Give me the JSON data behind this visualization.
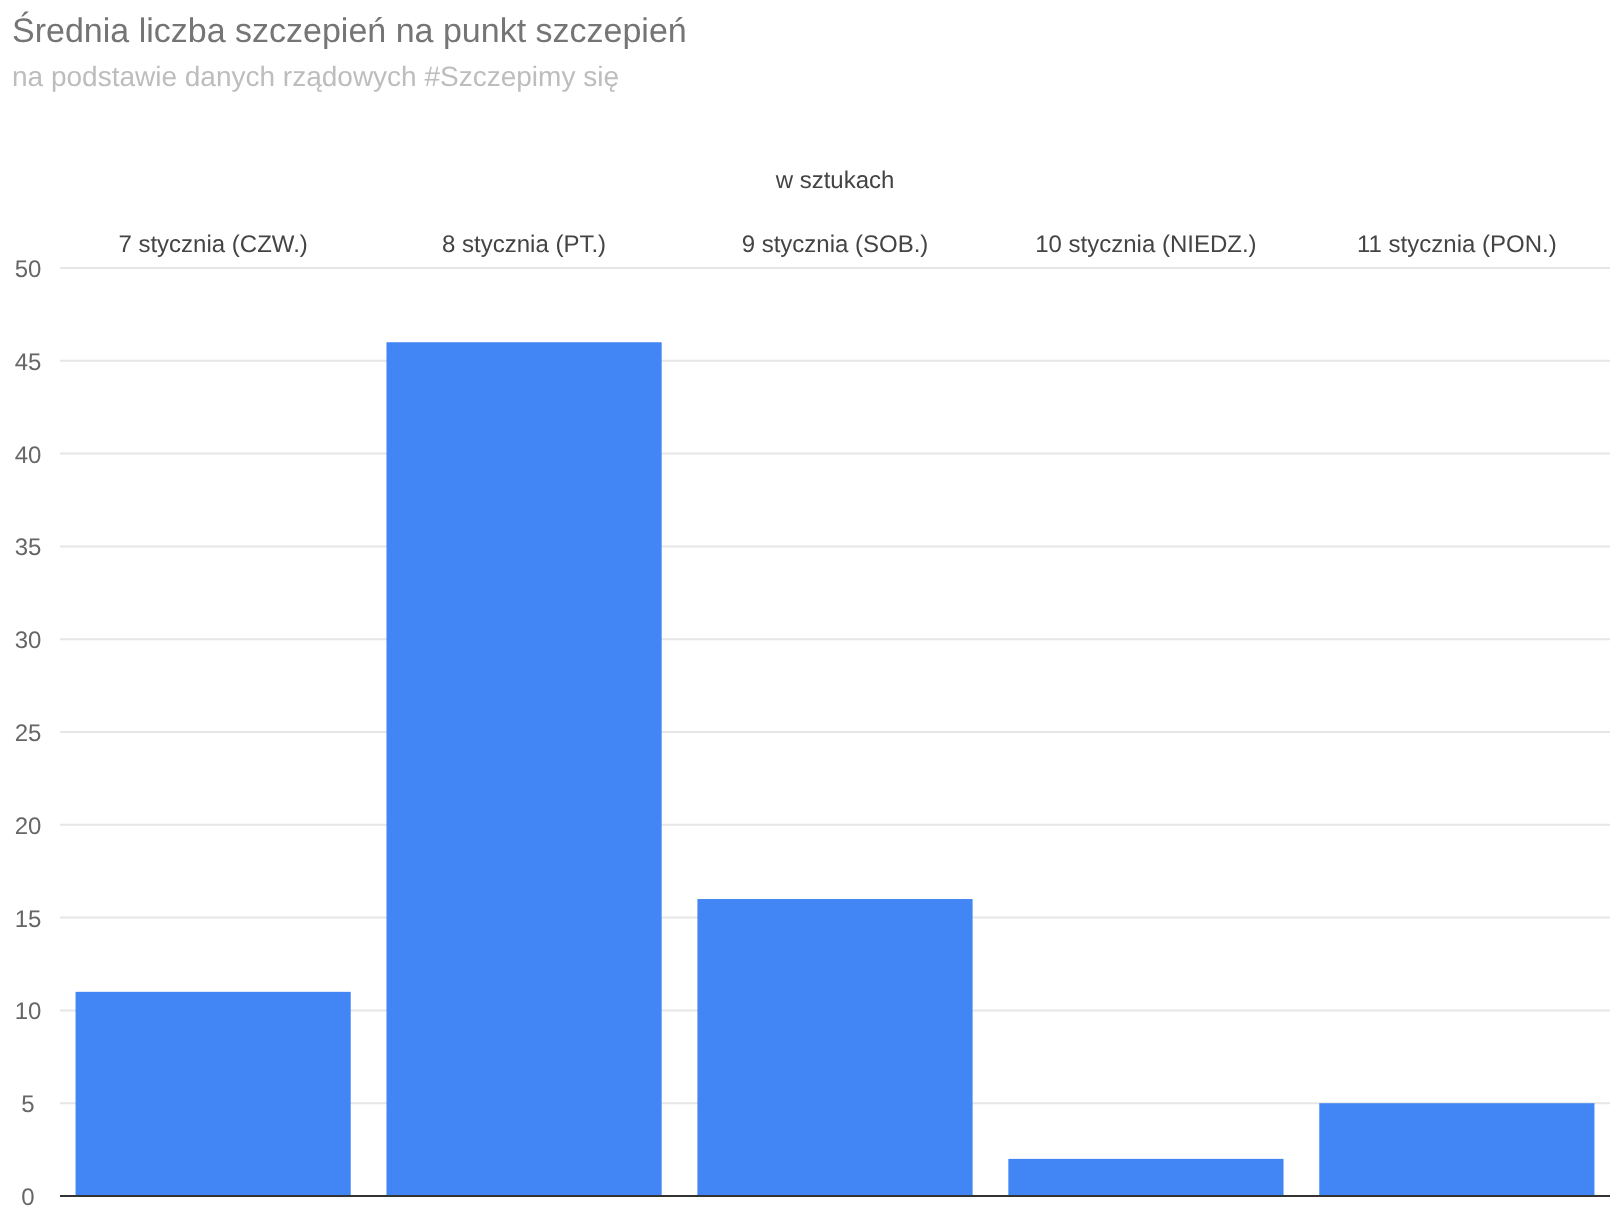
{
  "chart_data": {
    "type": "bar",
    "title": "Średnia liczba szczepień na punkt szczepień",
    "subtitle": "na podstawie danych rządowych #Szczepimy się",
    "xlabel": "w sztukach",
    "categories": [
      "7 stycznia (CZW.)",
      "8 stycznia (PT.)",
      "9 stycznia (SOB.)",
      "10 stycznia (NIEDZ.)",
      "11 stycznia (PON.)"
    ],
    "values": [
      11,
      46,
      16,
      2,
      5
    ],
    "color": "#4285f4",
    "ylim": [
      0,
      50
    ],
    "yticks": [
      0,
      5,
      10,
      15,
      20,
      25,
      30,
      35,
      40,
      45,
      50
    ],
    "grid": "y"
  }
}
